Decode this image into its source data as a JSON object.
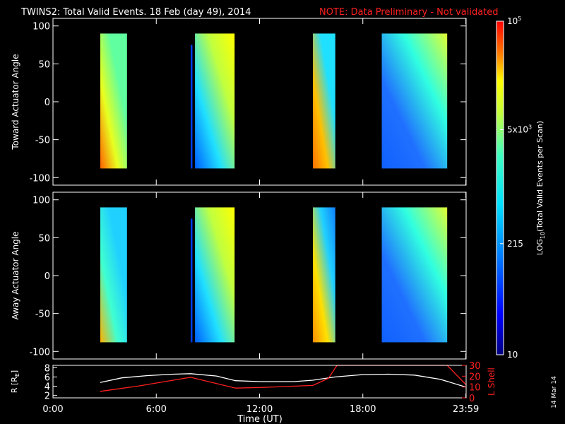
{
  "header": {
    "title": "TWINS2: Total Valid Events. 18 Feb (day  49), 2014",
    "note": "NOTE: Data Preliminary - Not validated"
  },
  "side_stamp": "14 Mar 14",
  "colors": {
    "background": "#000000",
    "axes": "#ffffff",
    "note": "#ff2020",
    "lshell": "#ff2020",
    "radius": "#ffffff"
  },
  "colorbar": {
    "label": "LOG10(Total Valid Events per Scan)",
    "label_base": "LOG",
    "label_sub": "10",
    "label_rest": "(Total Valid Events per Scan)",
    "scale": "log",
    "range": [
      10,
      100000
    ],
    "ticks": [
      {
        "value": 100000,
        "base": "10",
        "exp": "5"
      },
      {
        "value": 5000,
        "base": "5x10",
        "exp": "3"
      },
      {
        "value": 215,
        "base": "215",
        "exp": ""
      },
      {
        "value": 10,
        "base": "10",
        "exp": ""
      }
    ],
    "stops": [
      {
        "pos": 0.0,
        "color": "#00007f"
      },
      {
        "pos": 0.12,
        "color": "#0000ff"
      },
      {
        "pos": 0.3,
        "color": "#0080ff"
      },
      {
        "pos": 0.45,
        "color": "#00e0ff"
      },
      {
        "pos": 0.6,
        "color": "#40ffc0"
      },
      {
        "pos": 0.72,
        "color": "#c0ff40"
      },
      {
        "pos": 0.82,
        "color": "#ffff00"
      },
      {
        "pos": 0.9,
        "color": "#ff8000"
      },
      {
        "pos": 1.0,
        "color": "#ff0000"
      }
    ]
  },
  "chart_data": [
    {
      "type": "heatmap",
      "title": "",
      "ylabel": "Toward Actuator Angle",
      "xlabel": "",
      "xlim": [
        0,
        24
      ],
      "ylim": [
        -110,
        110
      ],
      "yticks": [
        "-100",
        "-50",
        "0",
        "50",
        "100"
      ],
      "blocks": [
        {
          "t_start": 2.75,
          "t_end": 4.3,
          "a_min": -88,
          "a_max": 90,
          "colors": [
            "#ff6000",
            "#e8ff20",
            "#60ffa0",
            "#60ffa0"
          ]
        },
        {
          "t_start": 8.0,
          "t_end": 8.1,
          "a_min": -88,
          "a_max": 75,
          "colors": [
            "#0040ff",
            "#0040ff",
            "#0040ff",
            "#0040ff"
          ]
        },
        {
          "t_start": 8.25,
          "t_end": 10.55,
          "a_min": -88,
          "a_max": 90,
          "colors": [
            "#0060ff",
            "#20e0ff",
            "#c0ff40",
            "#ffff00"
          ]
        },
        {
          "t_start": 15.1,
          "t_end": 16.4,
          "a_min": -88,
          "a_max": 90,
          "colors": [
            "#ff7000",
            "#ffc000",
            "#20e0ff",
            "#20e0ff"
          ]
        },
        {
          "t_start": 19.1,
          "t_end": 22.9,
          "a_min": -88,
          "a_max": 90,
          "colors": [
            "#1060ff",
            "#2070ff",
            "#30ffe0",
            "#e0ff30"
          ]
        }
      ]
    },
    {
      "type": "heatmap",
      "title": "",
      "ylabel": "Away Actuator Angle",
      "xlabel": "",
      "xlim": [
        0,
        24
      ],
      "ylim": [
        -110,
        110
      ],
      "yticks": [
        "-100",
        "-50",
        "0",
        "50",
        "100"
      ],
      "blocks": [
        {
          "t_start": 2.75,
          "t_end": 4.3,
          "a_min": -88,
          "a_max": 90,
          "colors": [
            "#ffb000",
            "#40ffd0",
            "#20d0ff",
            "#20d0ff"
          ]
        },
        {
          "t_start": 8.0,
          "t_end": 8.1,
          "a_min": -88,
          "a_max": 75,
          "colors": [
            "#0040ff",
            "#0040ff",
            "#0040ff",
            "#0040ff"
          ]
        },
        {
          "t_start": 8.25,
          "t_end": 10.55,
          "a_min": -88,
          "a_max": 90,
          "colors": [
            "#0060ff",
            "#20e0ff",
            "#c0ff40",
            "#ffff00"
          ]
        },
        {
          "t_start": 15.1,
          "t_end": 16.4,
          "a_min": -88,
          "a_max": 90,
          "colors": [
            "#ff9000",
            "#ffe000",
            "#20d0ff",
            "#1080ff"
          ]
        },
        {
          "t_start": 19.1,
          "t_end": 22.9,
          "a_min": -88,
          "a_max": 90,
          "colors": [
            "#1060ff",
            "#2070ff",
            "#30ffe0",
            "#e0ff30"
          ]
        }
      ]
    },
    {
      "type": "line",
      "title": "",
      "xlabel": "Time (UT)",
      "xlim": [
        0,
        24
      ],
      "xticks": [
        {
          "value": 0,
          "label": "0:00"
        },
        {
          "value": 6,
          "label": "6:00"
        },
        {
          "value": 12,
          "label": "12:00"
        },
        {
          "value": 18,
          "label": "18:00"
        },
        {
          "value": 23.983,
          "label": "23:59"
        }
      ],
      "left_axis": {
        "label_base": "R [R",
        "label_sub": "E",
        "label_end": "]",
        "ylim": [
          1.5,
          8.5
        ],
        "ticks": [
          "2",
          "4",
          "6",
          "8"
        ]
      },
      "right_axis": {
        "label": "L Shell",
        "ylim": [
          0,
          30
        ],
        "ticks": [
          "0",
          "10",
          "20",
          "30"
        ]
      },
      "series": [
        {
          "axis": "left",
          "color": "#ffffff",
          "x": [
            2.75,
            4.0,
            5.5,
            7.0,
            8.0,
            9.5,
            10.6,
            12.0,
            14.0,
            15.1,
            16.4,
            18.0,
            19.5,
            21.0,
            22.5,
            24.0
          ],
          "y": [
            4.8,
            5.8,
            6.3,
            6.6,
            6.7,
            6.2,
            5.2,
            5.0,
            5.0,
            5.3,
            6.0,
            6.5,
            6.6,
            6.4,
            5.5,
            3.8
          ]
        },
        {
          "axis": "right",
          "color": "#ff2020",
          "x": [
            2.75,
            5.0,
            8.0,
            10.6,
            12.0,
            15.1,
            16.0,
            16.5,
            22.9,
            24.0
          ],
          "y": [
            6.0,
            11.0,
            19.0,
            9.0,
            9.5,
            11.5,
            18.0,
            30.0,
            30.0,
            12.0
          ]
        }
      ]
    }
  ]
}
